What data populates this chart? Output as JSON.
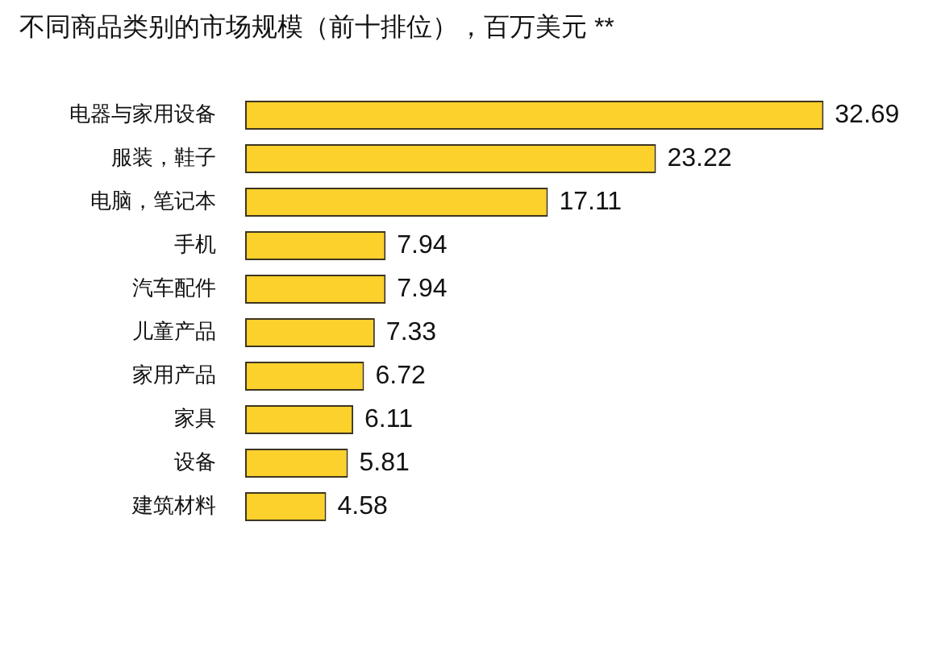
{
  "chart_data": {
    "type": "bar",
    "orientation": "horizontal",
    "title": "不同商品类别的市场规模（前十排位），百万美元 **",
    "categories": [
      "电器与家用设备",
      "服装，鞋子",
      "电脑，笔记本",
      "手机",
      "汽车配件",
      "儿童产品",
      "家用产品",
      "家具",
      "设备",
      "建筑材料"
    ],
    "values": [
      32.69,
      23.22,
      17.11,
      7.94,
      7.94,
      7.33,
      6.72,
      6.11,
      5.81,
      4.58
    ],
    "color": "#fcd12c",
    "data_labels": true
  }
}
